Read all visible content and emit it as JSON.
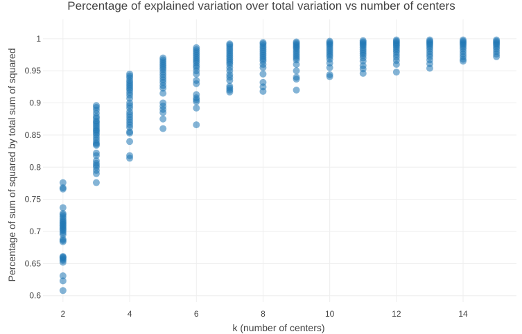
{
  "chart_data": {
    "type": "scatter",
    "title": "Percentage of explained variation over total variation vs number of centers",
    "xlabel": "k (number of centers)",
    "ylabel": "Percentage of sum of squared by total sum of squared",
    "xlim": [
      1.4,
      15.6
    ],
    "ylim": [
      0.59,
      1.03
    ],
    "x_ticks": [
      2,
      4,
      6,
      8,
      10,
      12,
      14
    ],
    "y_ticks": [
      0.6,
      0.65,
      0.7,
      0.75,
      0.8,
      0.85,
      0.9,
      0.95,
      1
    ],
    "grid": true,
    "marker_color": "#1f77b4",
    "series": [
      {
        "points": [
          {
            "k": 2,
            "values": [
              0.608,
              0.623,
              0.631,
              0.652,
              0.655,
              0.657,
              0.659,
              0.66,
              0.661,
              0.684,
              0.686,
              0.688,
              0.695,
              0.698,
              0.701,
              0.703,
              0.705,
              0.707,
              0.709,
              0.711,
              0.713,
              0.715,
              0.717,
              0.72,
              0.723,
              0.726,
              0.728,
              0.737,
              0.766,
              0.768,
              0.776
            ]
          },
          {
            "k": 3,
            "values": [
              0.776,
              0.79,
              0.795,
              0.8,
              0.803,
              0.806,
              0.81,
              0.818,
              0.822,
              0.834,
              0.836,
              0.838,
              0.842,
              0.846,
              0.85,
              0.853,
              0.856,
              0.858,
              0.861,
              0.864,
              0.867,
              0.87,
              0.872,
              0.876,
              0.879,
              0.884,
              0.889,
              0.893,
              0.896
            ]
          },
          {
            "k": 4,
            "values": [
              0.814,
              0.818,
              0.84,
              0.853,
              0.855,
              0.862,
              0.866,
              0.87,
              0.874,
              0.878,
              0.882,
              0.886,
              0.892,
              0.896,
              0.9,
              0.907,
              0.912,
              0.916,
              0.92,
              0.923,
              0.926,
              0.929,
              0.932,
              0.935,
              0.939,
              0.942,
              0.945
            ]
          },
          {
            "k": 5,
            "values": [
              0.86,
              0.875,
              0.885,
              0.89,
              0.895,
              0.9,
              0.915,
              0.923,
              0.927,
              0.932,
              0.936,
              0.94,
              0.944,
              0.948,
              0.952,
              0.955,
              0.958,
              0.961,
              0.964,
              0.967,
              0.97
            ]
          },
          {
            "k": 6,
            "values": [
              0.866,
              0.892,
              0.902,
              0.905,
              0.908,
              0.913,
              0.93,
              0.935,
              0.945,
              0.95,
              0.955,
              0.958,
              0.962,
              0.965,
              0.968,
              0.971,
              0.974,
              0.977,
              0.98,
              0.983,
              0.986
            ]
          },
          {
            "k": 7,
            "values": [
              0.917,
              0.92,
              0.923,
              0.926,
              0.935,
              0.94,
              0.944,
              0.95,
              0.955,
              0.96,
              0.963,
              0.966,
              0.969,
              0.972,
              0.975,
              0.978,
              0.981,
              0.984,
              0.987,
              0.99,
              0.992
            ]
          },
          {
            "k": 8,
            "values": [
              0.918,
              0.925,
              0.932,
              0.945,
              0.955,
              0.96,
              0.965,
              0.968,
              0.971,
              0.974,
              0.977,
              0.98,
              0.983,
              0.986,
              0.989,
              0.992,
              0.994
            ]
          },
          {
            "k": 9,
            "values": [
              0.92,
              0.937,
              0.94,
              0.95,
              0.96,
              0.967,
              0.97,
              0.973,
              0.976,
              0.979,
              0.982,
              0.985,
              0.987,
              0.989,
              0.991,
              0.993,
              0.995
            ]
          },
          {
            "k": 10,
            "values": [
              0.941,
              0.944,
              0.955,
              0.962,
              0.968,
              0.972,
              0.975,
              0.978,
              0.981,
              0.984,
              0.987,
              0.99,
              0.992,
              0.994,
              0.996
            ]
          },
          {
            "k": 11,
            "values": [
              0.946,
              0.953,
              0.958,
              0.965,
              0.97,
              0.974,
              0.977,
              0.98,
              0.983,
              0.986,
              0.989,
              0.991,
              0.993,
              0.995,
              0.997
            ]
          },
          {
            "k": 12,
            "values": [
              0.948,
              0.96,
              0.966,
              0.971,
              0.975,
              0.979,
              0.982,
              0.985,
              0.988,
              0.99,
              0.992,
              0.994,
              0.996,
              0.998
            ]
          },
          {
            "k": 13,
            "values": [
              0.954,
              0.961,
              0.967,
              0.972,
              0.976,
              0.98,
              0.984,
              0.987,
              0.99,
              0.992,
              0.994,
              0.996,
              0.998
            ]
          },
          {
            "k": 14,
            "values": [
              0.965,
              0.968,
              0.972,
              0.976,
              0.98,
              0.984,
              0.987,
              0.99,
              0.992,
              0.994,
              0.996,
              0.998
            ]
          },
          {
            "k": 15,
            "values": [
              0.972,
              0.976,
              0.98,
              0.984,
              0.987,
              0.99,
              0.992,
              0.994,
              0.996,
              0.998
            ]
          }
        ]
      }
    ]
  }
}
